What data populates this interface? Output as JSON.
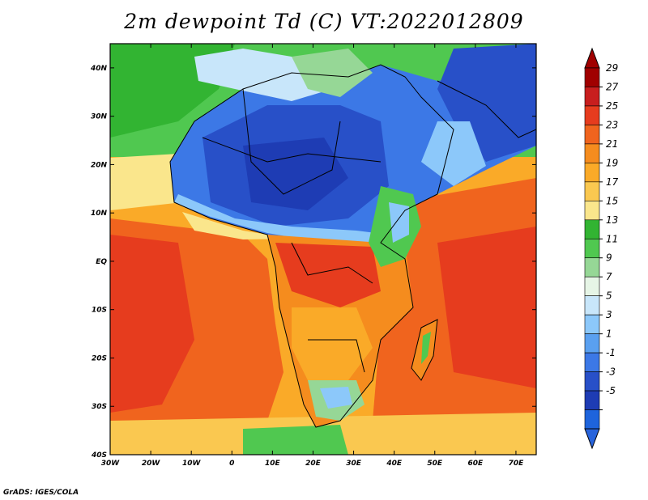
{
  "title": "2m dewpoint Td (C) VT:2022012809",
  "credit": "GrADS: IGES/COLA",
  "map": {
    "lon_ticks": [
      "30W",
      "20W",
      "10W",
      "0",
      "10E",
      "20E",
      "30E",
      "40E",
      "50E",
      "60E",
      "70E"
    ],
    "lat_ticks": [
      "40N",
      "30N",
      "20N",
      "10N",
      "EQ",
      "10S",
      "20S",
      "30S",
      "40S"
    ],
    "lon_range": [
      -30,
      75
    ],
    "lat_range": [
      -40,
      45
    ]
  },
  "colorbar": {
    "labels": [
      "29",
      "27",
      "25",
      "23",
      "21",
      "19",
      "17",
      "15",
      "13",
      "11",
      "9",
      "7",
      "5",
      "3",
      "1",
      "-1",
      "-3",
      "-5"
    ],
    "colors": [
      "#a00000",
      "#c81e1e",
      "#e63c1e",
      "#f0641e",
      "#f58c1e",
      "#faaa28",
      "#fac850",
      "#fae68c",
      "#32b432",
      "#50c850",
      "#96d796",
      "#e6f5e6",
      "#c8e6fa",
      "#8cc8fa",
      "#5aa0f0",
      "#3c78e6",
      "#2850c8",
      "#1e3cb4",
      "#1e64dc"
    ],
    "triangle_top": "#a00000",
    "triangle_bottom": "#2864dc"
  }
}
